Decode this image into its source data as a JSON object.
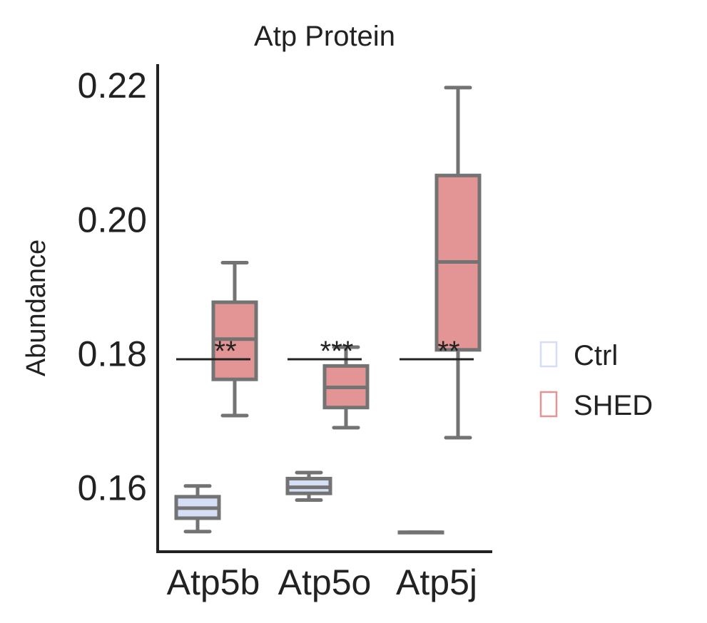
{
  "chart_data": {
    "type": "box",
    "title": "Atp Protein",
    "xlabel": "",
    "ylabel": "Abundance",
    "categories": [
      "Atp5b",
      "Atp5o",
      "Atp5j"
    ],
    "ylim": [
      0.1505,
      0.2232
    ],
    "yticks": [
      {
        "value": 0.16,
        "label": "0.16"
      },
      {
        "value": 0.18,
        "label": "0.18"
      },
      {
        "value": 0.2,
        "label": "0.20"
      },
      {
        "value": 0.22,
        "label": "0.22"
      }
    ],
    "grid": false,
    "legend_position": "right",
    "series": [
      {
        "name": "Ctrl",
        "color": "#d4def4",
        "boxes": [
          {
            "category": "Atp5b",
            "whisker_low": 0.1535,
            "q1": 0.1555,
            "median": 0.157,
            "q3": 0.1587,
            "whisker_high": 0.1603
          },
          {
            "category": "Atp5o",
            "whisker_low": 0.1582,
            "q1": 0.1592,
            "median": 0.1601,
            "q3": 0.1614,
            "whisker_high": 0.1623
          },
          {
            "category": "Atp5j",
            "whisker_low": 0.1534,
            "q1": 0.1534,
            "median": 0.1534,
            "q3": 0.1534,
            "whisker_high": 0.1534
          }
        ]
      },
      {
        "name": "SHED",
        "color": "#e39494",
        "boxes": [
          {
            "category": "Atp5b",
            "whisker_low": 0.1708,
            "q1": 0.1762,
            "median": 0.1822,
            "q3": 0.1877,
            "whisker_high": 0.1936
          },
          {
            "category": "Atp5o",
            "whisker_low": 0.169,
            "q1": 0.172,
            "median": 0.175,
            "q3": 0.1782,
            "whisker_high": 0.181
          },
          {
            "category": "Atp5j",
            "whisker_low": 0.1675,
            "q1": 0.1806,
            "median": 0.1937,
            "q3": 0.2066,
            "whisker_high": 0.2197
          }
        ]
      }
    ],
    "annotations": [
      {
        "category": "Atp5b",
        "text": "**",
        "line_y": 0.1792
      },
      {
        "category": "Atp5o",
        "text": "***",
        "line_y": 0.1792
      },
      {
        "category": "Atp5j",
        "text": "**",
        "line_y": 0.1792
      }
    ]
  }
}
